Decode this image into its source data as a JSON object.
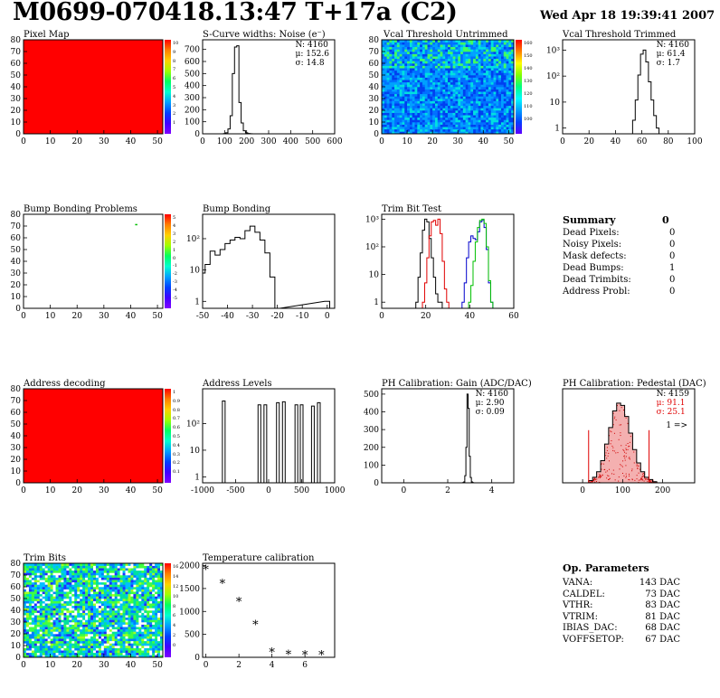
{
  "header": {
    "title": "M0699-070418.13:47 T+17a (C2)",
    "date": "Wed Apr 18 19:39:41 2007"
  },
  "colors": {
    "hist": "#000000",
    "red": "#e00000",
    "green": "#00c000",
    "blue": "#0000cc",
    "fill_red": "#f0a0a0"
  },
  "chart_data": [
    {
      "id": "pixel-map",
      "type": "heatmap",
      "title": "Pixel Map",
      "xlim": [
        0,
        52
      ],
      "ylim": [
        0,
        80
      ],
      "xticks": [
        "0",
        "10",
        "20",
        "30",
        "40",
        "50"
      ],
      "yticks": [
        "0",
        "10",
        "20",
        "30",
        "40",
        "50",
        "60",
        "70",
        "80"
      ],
      "fill": "uniform-max",
      "palette_ticks": [
        "10",
        "9",
        "8",
        "7",
        "6",
        "5",
        "4",
        "3",
        "2",
        "1"
      ]
    },
    {
      "id": "scurve",
      "type": "bar",
      "title": "S-Curve widths: Noise (e⁻)",
      "xlim": [
        0,
        600
      ],
      "ylim": [
        0,
        780
      ],
      "log": false,
      "xticks": [
        "0",
        "100",
        "200",
        "300",
        "400",
        "500",
        "600"
      ],
      "yticks": [
        "0",
        "100",
        "200",
        "300",
        "400",
        "500",
        "600",
        "700"
      ],
      "stats": [
        "N: 4160",
        "μ: 152.6",
        "σ: 14.8"
      ],
      "x": [
        100,
        110,
        120,
        130,
        140,
        150,
        160,
        170,
        180,
        190,
        200,
        210,
        220
      ],
      "values": [
        2,
        8,
        40,
        150,
        500,
        720,
        730,
        260,
        90,
        25,
        8,
        3,
        1
      ]
    },
    {
      "id": "vcal-untrimmed",
      "type": "heatmap",
      "title": "Vcal Threshold Untrimmed",
      "xlim": [
        0,
        52
      ],
      "ylim": [
        0,
        80
      ],
      "xticks": [
        "0",
        "10",
        "20",
        "30",
        "40",
        "50"
      ],
      "yticks": [
        "0",
        "10",
        "20",
        "30",
        "40",
        "50",
        "60",
        "70",
        "80"
      ],
      "palette_ticks": [
        "160",
        "150",
        "140",
        "130",
        "120",
        "110",
        "100"
      ]
    },
    {
      "id": "vcal-trimmed",
      "type": "bar",
      "title": "Vcal Threshold Trimmed",
      "xlim": [
        0,
        100
      ],
      "ylim": [
        0.6,
        2500
      ],
      "log": true,
      "xticks": [
        "0",
        "20",
        "40",
        "60",
        "80",
        "100"
      ],
      "yticks": [
        "1",
        "10",
        "10²",
        "10³"
      ],
      "stats": [
        "N: 4160",
        "μ: 61.4",
        "σ: 1.7"
      ],
      "x": [
        54,
        56,
        58,
        60,
        62,
        64,
        66,
        68,
        70,
        72
      ],
      "values": [
        2,
        12,
        110,
        700,
        1000,
        350,
        60,
        12,
        3,
        1
      ]
    },
    {
      "id": "bump-problems",
      "type": "heatmap",
      "title": "Bump Bonding Problems",
      "xlim": [
        0,
        52
      ],
      "ylim": [
        0,
        80
      ],
      "xticks": [
        "0",
        "10",
        "20",
        "30",
        "40",
        "50"
      ],
      "yticks": [
        "0",
        "10",
        "20",
        "30",
        "40",
        "50",
        "60",
        "70",
        "80"
      ],
      "points": [
        {
          "x": 42,
          "y": 71
        }
      ],
      "palette_ticks": [
        "5",
        "4",
        "3",
        "2",
        "1",
        "0",
        "-1",
        "-2",
        "-3",
        "-4",
        "-5"
      ]
    },
    {
      "id": "bump-bonding",
      "type": "bar",
      "title": "Bump Bonding",
      "xlim": [
        -50,
        3
      ],
      "ylim": [
        0.6,
        600
      ],
      "log": true,
      "xticks": [
        "-50",
        "-40",
        "-30",
        "-20",
        "-10",
        "0"
      ],
      "yticks": [
        "1",
        "10",
        "10²"
      ],
      "x": [
        -50,
        -48,
        -46,
        -44,
        -42,
        -40,
        -38,
        -36,
        -34,
        -32,
        -30,
        -28,
        -26,
        -24,
        -22,
        -20,
        0
      ],
      "values": [
        8,
        15,
        40,
        30,
        45,
        70,
        90,
        110,
        100,
        180,
        250,
        160,
        90,
        35,
        6,
        0,
        1
      ]
    },
    {
      "id": "trim-bit-test",
      "type": "line",
      "title": "Trim Bit Test",
      "xlim": [
        0,
        60
      ],
      "ylim": [
        0.6,
        1500
      ],
      "log": true,
      "xticks": [
        "0",
        "20",
        "40",
        "60"
      ],
      "yticks": [
        "1",
        "10",
        "10²",
        "10³"
      ],
      "series": [
        {
          "color": "#000000",
          "x": [
            16,
            17,
            18,
            19,
            20,
            21,
            22,
            23,
            24,
            25,
            26,
            27
          ],
          "values": [
            1,
            8,
            60,
            400,
            1000,
            800,
            200,
            40,
            8,
            2,
            1,
            1
          ]
        },
        {
          "color": "#e00000",
          "x": [
            19,
            20,
            21,
            22,
            23,
            24,
            25,
            26,
            27,
            28,
            29,
            30
          ],
          "values": [
            1,
            5,
            40,
            250,
            800,
            900,
            600,
            1000,
            300,
            30,
            3,
            1
          ]
        },
        {
          "color": "#0000cc",
          "x": [
            37,
            38,
            39,
            40,
            41,
            42,
            43,
            44,
            45,
            46,
            47,
            48,
            49,
            50
          ],
          "values": [
            1,
            5,
            40,
            150,
            250,
            200,
            180,
            350,
            800,
            900,
            500,
            80,
            5,
            1
          ]
        },
        {
          "color": "#00c000",
          "x": [
            40,
            41,
            42,
            43,
            44,
            45,
            46,
            47,
            48,
            49,
            50
          ],
          "values": [
            1,
            4,
            30,
            150,
            500,
            900,
            1000,
            700,
            100,
            6,
            1
          ]
        }
      ]
    },
    {
      "id": "address-decoding",
      "type": "heatmap",
      "title": "Address decoding",
      "xlim": [
        0,
        52
      ],
      "ylim": [
        0,
        80
      ],
      "xticks": [
        "0",
        "10",
        "20",
        "30",
        "40",
        "50"
      ],
      "yticks": [
        "0",
        "10",
        "20",
        "30",
        "40",
        "50",
        "60",
        "70",
        "80"
      ],
      "fill": "uniform-max",
      "palette_ticks": [
        "1",
        "0.9",
        "0.8",
        "0.7",
        "0.6",
        "0.5",
        "0.4",
        "0.3",
        "0.2",
        "0.1"
      ]
    },
    {
      "id": "address-levels",
      "type": "bar",
      "title": "Address Levels",
      "xlim": [
        -1000,
        1000
      ],
      "ylim": [
        0.6,
        2000
      ],
      "log": true,
      "xticks": [
        "-1000",
        "-500",
        "0",
        "500",
        "1000"
      ],
      "yticks": [
        "1",
        "10",
        "10²"
      ],
      "x": [
        -680,
        -140,
        -50,
        140,
        230,
        420,
        500,
        670,
        760
      ],
      "values": [
        700,
        500,
        500,
        600,
        650,
        500,
        500,
        450,
        600
      ]
    },
    {
      "id": "ph-gain",
      "type": "bar",
      "title": "PH Calibration: Gain (ADC/DAC)",
      "xlim": [
        -1,
        5
      ],
      "ylim": [
        0,
        530
      ],
      "log": false,
      "xticks": [
        "0",
        "2",
        "4"
      ],
      "yticks": [
        "0",
        "100",
        "200",
        "300",
        "400",
        "500"
      ],
      "stats": [
        "N: 4160",
        "μ: 2.90",
        "σ: 0.09"
      ],
      "x": [
        2.7,
        2.75,
        2.8,
        2.85,
        2.9,
        2.95,
        3.0,
        3.05,
        3.1,
        3.15
      ],
      "values": [
        1,
        5,
        40,
        200,
        500,
        420,
        150,
        30,
        5,
        1
      ]
    },
    {
      "id": "ph-pedestal",
      "type": "bar",
      "title": "PH Calibration: Pedestal (DAC)",
      "xlim": [
        -50,
        280
      ],
      "ylim": [
        0,
        85
      ],
      "log": false,
      "xticks": [
        "0",
        "100",
        "200"
      ],
      "yticks": [],
      "stats": [
        "N: 4159",
        "μ: 91.1",
        "σ: 25.1"
      ],
      "overflow_label": "1 =>",
      "cuts": [
        15,
        166
      ],
      "x": [
        20,
        30,
        40,
        50,
        60,
        70,
        80,
        90,
        100,
        110,
        120,
        130,
        140,
        150,
        160,
        170,
        180,
        190
      ],
      "values": [
        2,
        5,
        10,
        20,
        35,
        50,
        65,
        72,
        70,
        60,
        45,
        30,
        18,
        10,
        5,
        3,
        1,
        0
      ]
    },
    {
      "id": "trim-bits",
      "type": "heatmap",
      "title": "Trim Bits",
      "xlim": [
        0,
        52
      ],
      "ylim": [
        0,
        80
      ],
      "xticks": [
        "0",
        "10",
        "20",
        "30",
        "40",
        "50"
      ],
      "yticks": [
        "0",
        "10",
        "20",
        "30",
        "40",
        "50",
        "60",
        "70",
        "80"
      ],
      "palette_ticks": [
        "16",
        "14",
        "12",
        "10",
        "8",
        "6",
        "4",
        "2",
        "0"
      ]
    },
    {
      "id": "temperature",
      "type": "scatter",
      "title": "Temperature calibration",
      "xlim": [
        -0.2,
        7.8
      ],
      "ylim": [
        0,
        2050
      ],
      "log": false,
      "xticks": [
        "0",
        "2",
        "4",
        "6"
      ],
      "yticks": [
        "0",
        "500",
        "1000",
        "1500",
        "2000"
      ],
      "x": [
        0,
        1,
        2,
        3,
        4,
        5,
        6,
        7
      ],
      "values": [
        1900,
        1600,
        1200,
        700,
        100,
        50,
        40,
        40
      ]
    }
  ],
  "summary": {
    "title": "Summary",
    "total": "0",
    "rows": [
      {
        "label": "Dead Pixels:",
        "value": "0"
      },
      {
        "label": "Noisy Pixels:",
        "value": "0"
      },
      {
        "label": "Mask defects:",
        "value": "0"
      },
      {
        "label": "Dead Bumps:",
        "value": "1"
      },
      {
        "label": "Dead Trimbits:",
        "value": "0"
      },
      {
        "label": "Address Probl:",
        "value": "0"
      }
    ]
  },
  "op_params": {
    "title": "Op. Parameters",
    "rows": [
      {
        "label": "VANA:",
        "value": "143 DAC"
      },
      {
        "label": "CALDEL:",
        "value": "73 DAC"
      },
      {
        "label": "VTHR:",
        "value": "83 DAC"
      },
      {
        "label": "VTRIM:",
        "value": "81 DAC"
      },
      {
        "label": "IBIAS_DAC:",
        "value": "68 DAC"
      },
      {
        "label": "VOFFSETOP:",
        "value": "67 DAC"
      }
    ]
  }
}
